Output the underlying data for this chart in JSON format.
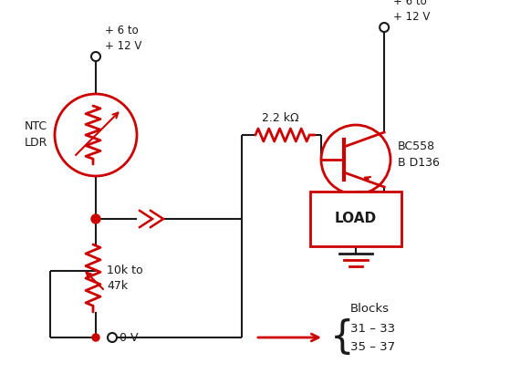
{
  "title": "",
  "bg_color": "#ffffff",
  "red": "#cc0000",
  "black": "#1a1a1a",
  "figsize": [
    5.59,
    4.21
  ],
  "dpi": 100,
  "labels": {
    "ntc_ldr": "NTC\nLDR",
    "v_top": "+ 6 to\n+ 12 V",
    "v_top_right": "+ 6 to\n+ 12 V",
    "resistor_label": "2.2 kΩ",
    "transistor_label": "BC558\nB D136",
    "load_label": "LOAD",
    "r2_label": "10k to\n47k",
    "v_bot": "0 V",
    "blocks": "Blocks\n31 – 33\n35 – 37"
  }
}
